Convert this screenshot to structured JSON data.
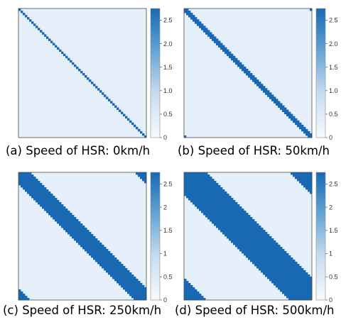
{
  "colors": {
    "light": "#e4eff9",
    "dark": "#1868b4",
    "frame": "#4a4a4a"
  },
  "chart_data": [
    {
      "type": "heatmap",
      "caption": "(a) Speed of HSR: 0km/h",
      "grid_size": 60,
      "band_half_width": 0,
      "colorbar": {
        "min": 0,
        "max": 2.75,
        "ticks": [
          0,
          0.5,
          1.0,
          1.5,
          2.0,
          2.5
        ],
        "tick_labels": [
          "0",
          "0.5",
          "1.0",
          "1.5",
          "2.0",
          "2.5"
        ]
      }
    },
    {
      "type": "heatmap",
      "caption": "(b) Speed of HSR: 50km/h",
      "grid_size": 60,
      "band_half_width": 1,
      "colorbar": {
        "min": 0,
        "max": 2.75,
        "ticks": [
          0,
          0.5,
          1.0,
          1.5,
          2.0,
          2.5
        ],
        "tick_labels": [
          "0",
          "0.5",
          "1.0",
          "1.5",
          "2.0",
          "2.5"
        ]
      }
    },
    {
      "type": "heatmap",
      "caption": "(c) Speed of HSR: 250km/h",
      "grid_size": 60,
      "band_half_width": 5,
      "colorbar": {
        "min": 0,
        "max": 2.75,
        "ticks": [
          0,
          0.5,
          1.0,
          1.5,
          2.0,
          2.5
        ],
        "tick_labels": [
          "0",
          "0.5",
          "1",
          "1.5",
          "2",
          "2.5"
        ]
      }
    },
    {
      "type": "heatmap",
      "caption": "(d) Speed of HSR: 500km/h",
      "grid_size": 60,
      "band_half_width": 10,
      "colorbar": {
        "min": 0,
        "max": 2.75,
        "ticks": [
          0,
          0.5,
          1.0,
          1.5,
          2.0,
          2.5
        ],
        "tick_labels": [
          "0",
          "0.5",
          "1",
          "1.5",
          "2",
          "2.5"
        ]
      }
    }
  ]
}
